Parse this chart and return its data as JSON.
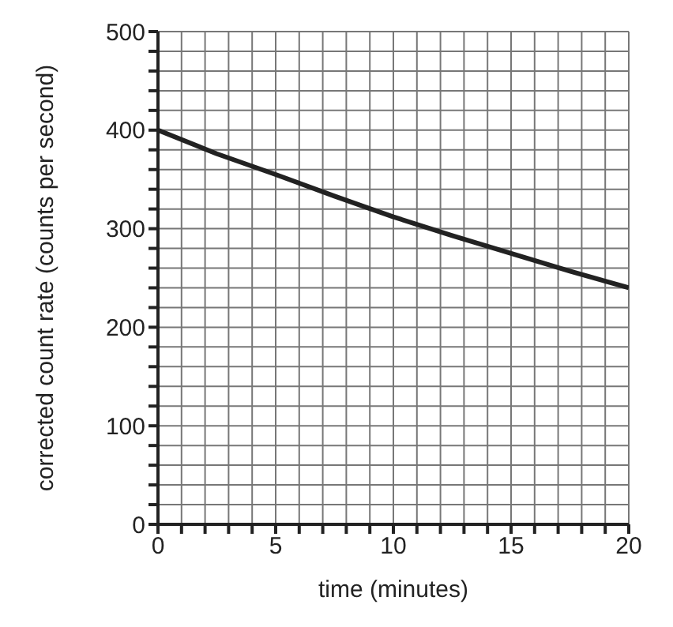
{
  "chart_data": {
    "type": "line",
    "xlabel": "time (minutes)",
    "ylabel": "corrected count rate (counts per second)",
    "x": [
      0,
      2.5,
      5,
      7.5,
      10,
      12.5,
      15,
      17.5,
      20
    ],
    "series": [
      {
        "color": "#222222",
        "values": [
          400,
          376,
          355,
          333,
          312,
          293,
          275,
          257,
          240
        ]
      }
    ],
    "xlim": [
      0,
      20
    ],
    "xticks": [
      0,
      {
        "value": 1,
        "label": null
      },
      {
        "value": 2,
        "label": null
      },
      {
        "value": 3,
        "label": null
      },
      {
        "value": 4,
        "label": null
      },
      5,
      {
        "value": 6,
        "label": null
      },
      {
        "value": 7,
        "label": null
      },
      {
        "value": 8,
        "label": null
      },
      {
        "value": 9,
        "label": null
      },
      10,
      {
        "value": 11,
        "label": null
      },
      {
        "value": 12,
        "label": null
      },
      {
        "value": 13,
        "label": null
      },
      {
        "value": 14,
        "label": null
      },
      15,
      {
        "value": 16,
        "label": null
      },
      {
        "value": 17,
        "label": null
      },
      {
        "value": 18,
        "label": null
      },
      {
        "value": 19,
        "label": null
      },
      20
    ],
    "ylim": [
      0,
      500
    ],
    "yticks": [
      0,
      {
        "value": 20,
        "label": null
      },
      {
        "value": 40,
        "label": null
      },
      {
        "value": 60,
        "label": null
      },
      {
        "value": 80,
        "label": null
      },
      100,
      {
        "value": 120,
        "label": null
      },
      {
        "value": 140,
        "label": null
      },
      {
        "value": 160,
        "label": null
      },
      {
        "value": 180,
        "label": null
      },
      200,
      {
        "value": 220,
        "label": null
      },
      {
        "value": 240,
        "label": null
      },
      {
        "value": 260,
        "label": null
      },
      {
        "value": 280,
        "label": null
      },
      300,
      {
        "value": 320,
        "label": null
      },
      {
        "value": 340,
        "label": null
      },
      {
        "value": 360,
        "label": null
      },
      {
        "value": 380,
        "label": null
      },
      400,
      {
        "value": 420,
        "label": null
      },
      {
        "value": 440,
        "label": null
      },
      {
        "value": 460,
        "label": null
      },
      {
        "value": 480,
        "label": null
      },
      500
    ],
    "grid": true,
    "marker": "none",
    "line_style": "solid"
  }
}
